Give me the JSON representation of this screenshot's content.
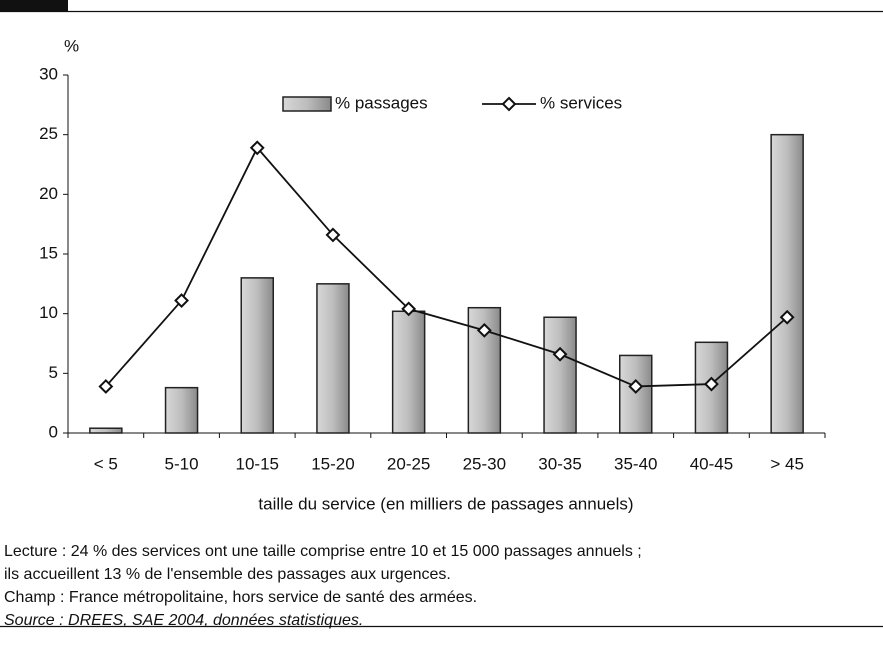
{
  "chart_data": {
    "type": "bar-line",
    "y_label": "%",
    "x_label": "taille du service (en milliers de passages annuels)",
    "categories": [
      "< 5",
      "5-10",
      "10-15",
      "15-20",
      "20-25",
      "25-30",
      "30-35",
      "35-40",
      "40-45",
      "> 45"
    ],
    "series": [
      {
        "name": "% passages",
        "type": "bar",
        "color": "#bdbdbd",
        "values": [
          0.4,
          3.8,
          13,
          12.5,
          10.2,
          10.5,
          9.7,
          6.5,
          7.6,
          25
        ]
      },
      {
        "name": "% services",
        "type": "line",
        "color": "#111111",
        "values": [
          3.9,
          11.1,
          23.9,
          16.6,
          10.4,
          8.6,
          6.6,
          3.9,
          4.1,
          9.7
        ]
      }
    ],
    "ylim": [
      0,
      30
    ],
    "yticks": [
      0,
      5,
      10,
      15,
      20,
      25,
      30
    ],
    "grid": false,
    "legend": "top"
  },
  "notes": [
    "Lecture : 24 % des services ont une taille comprise entre  10 et 15 000 passages annuels ;",
    "ils accueillent 13 % de l'ensemble des passages aux urgences.",
    "Champ : France métropolitaine, hors service de santé des armées.",
    "Source : DREES, SAE 2004, données statistiques."
  ]
}
